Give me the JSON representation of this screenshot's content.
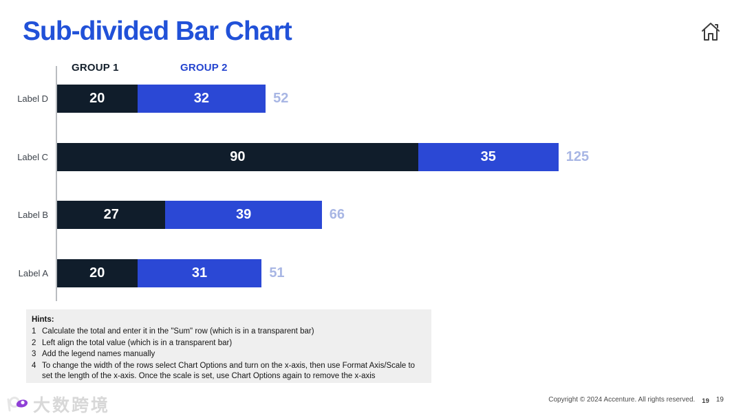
{
  "header": {
    "title": "Sub-divided Bar Chart"
  },
  "icons": {
    "home": "home-icon",
    "watermark_logo": "swirl-logo-icon"
  },
  "chart_data": {
    "type": "bar",
    "orientation": "horizontal",
    "stacked": true,
    "categories": [
      "Label D",
      "Label C",
      "Label B",
      "Label A"
    ],
    "series": [
      {
        "name": "GROUP 1",
        "color": "#101d2b",
        "values": [
          20,
          90,
          27,
          20
        ]
      },
      {
        "name": "GROUP 2",
        "color": "#2b48d5",
        "values": [
          32,
          35,
          39,
          31
        ]
      }
    ],
    "totals": [
      52,
      125,
      66,
      51
    ],
    "total_label_color": "#a8b6e4",
    "legend_position": "top",
    "xlim": [
      0,
      125
    ],
    "grid": false,
    "x_axis_visible": false,
    "title": "Sub-divided Bar Chart"
  },
  "colors": {
    "title_blue": "#2151d8",
    "group1_dark": "#101d2b",
    "group2_blue": "#2b48d5",
    "total_light_blue": "#a8b6e4",
    "hints_bg": "#efefef"
  },
  "hints": {
    "title": "Hints:",
    "items": [
      {
        "num": "1",
        "text": "Calculate the total and enter it in the \"Sum\" row (which is in a transparent bar)"
      },
      {
        "num": "2",
        "text": "Left align the total value (which is in a transparent bar)"
      },
      {
        "num": "3",
        "text": "Add the legend names manually"
      },
      {
        "num": "4",
        "text": "To change the width of the rows select Chart Options and turn on the x-axis, then use Format Axis/Scale to set the length of the x-axis. Once the scale is set, use Chart Options again to remove the x-axis"
      }
    ]
  },
  "footer": {
    "copyright": "Copyright © 2024 Accenture. All rights reserved.",
    "page_small": "19",
    "page": "19"
  },
  "watermark": {
    "text": "大数跨境"
  }
}
